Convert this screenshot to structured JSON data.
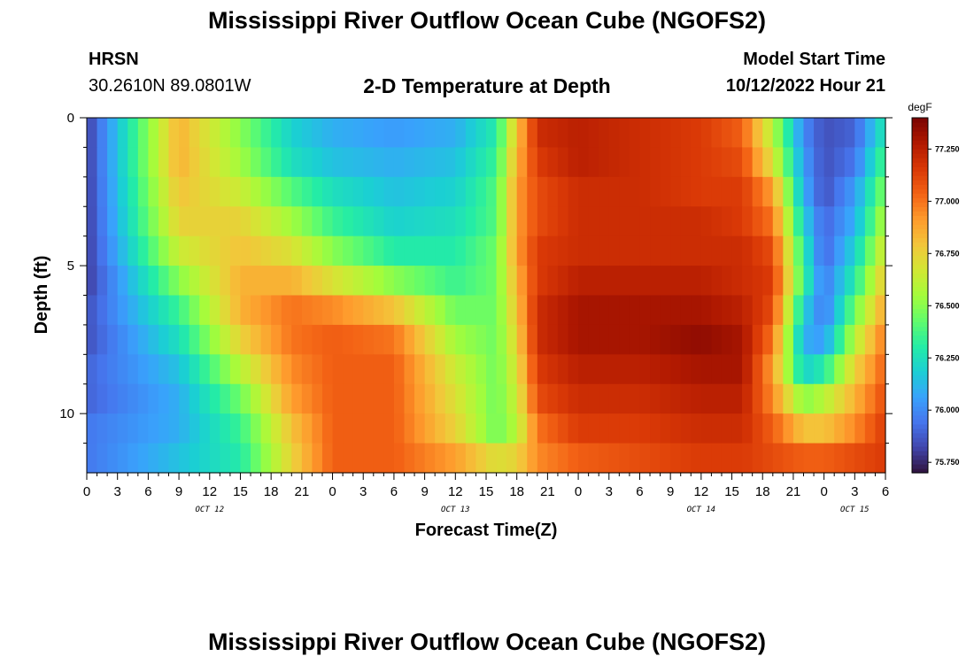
{
  "header": {
    "title": "Mississippi River Outflow Ocean Cube (NGOFS2)",
    "station": "HRSN",
    "coords": "30.2610N  89.0801W",
    "subtitle": "2-D Temperature at Depth",
    "model_start_label": "Model Start Time",
    "model_start_value": "10/12/2022 Hour 21"
  },
  "footer": {
    "title": "Mississippi River Outflow Ocean Cube (NGOFS2)"
  },
  "chart_data": {
    "type": "heatmap",
    "title": "2-D Temperature at Depth",
    "xlabel": "Forecast Time(Z)",
    "ylabel": "Depth (ft)",
    "x_hours_range": [
      0,
      78
    ],
    "y_depth_range_ft": [
      0,
      12
    ],
    "x_tick_labels": [
      "0",
      "3",
      "6",
      "9",
      "12",
      "15",
      "18",
      "21",
      "0",
      "3",
      "6",
      "9",
      "12",
      "15",
      "18",
      "21",
      "0",
      "3",
      "6",
      "9",
      "12",
      "15",
      "18",
      "21",
      "0",
      "3",
      "6"
    ],
    "date_labels": [
      {
        "label": "OCT 12",
        "hour": 12
      },
      {
        "label": "OCT 13",
        "hour": 36
      },
      {
        "label": "OCT 14",
        "hour": 60
      },
      {
        "label": "OCT 15",
        "hour": 75
      }
    ],
    "y_major_ticks": [
      0,
      5,
      10
    ],
    "y_minor_ticks": [
      1,
      2,
      3,
      4,
      6,
      7,
      8,
      9,
      11
    ],
    "colorbar": {
      "unit": "degF",
      "min": 75.7,
      "max": 77.4,
      "tick_values": [
        75.75,
        76.0,
        76.25,
        76.5,
        76.75,
        77.0,
        77.25
      ],
      "tick_labels": [
        "75.750",
        "76.000",
        "76.250",
        "76.500",
        "76.750",
        "77.000",
        "77.250"
      ],
      "colormap": [
        "#30123b",
        "#4145ab",
        "#4675ed",
        "#39a2fc",
        "#1bcfd4",
        "#24eca6",
        "#61fc6c",
        "#a4fc3b",
        "#d1e834",
        "#f3c63a",
        "#fe9b2d",
        "#f36315",
        "#d93806",
        "#b11901",
        "#7a0402"
      ]
    },
    "depth_levels_ft": [
      0.5,
      1.5,
      2.5,
      3.5,
      4.5,
      5.5,
      6.5,
      7.5,
      8.5,
      9.5,
      10.5,
      11.5
    ],
    "time_hours": [
      0,
      9,
      15,
      20,
      24,
      30,
      36,
      40,
      42,
      44,
      48,
      54,
      60,
      64,
      67,
      70,
      72,
      75,
      78
    ],
    "temperature_degF": [
      [
        75.8,
        76.85,
        76.5,
        76.2,
        76.1,
        76.05,
        76.1,
        76.3,
        76.8,
        77.2,
        77.25,
        77.2,
        77.15,
        77.05,
        76.6,
        76.0,
        75.85,
        75.9,
        76.3
      ],
      [
        75.8,
        76.85,
        76.55,
        76.25,
        76.15,
        76.1,
        76.15,
        76.35,
        76.85,
        77.15,
        77.25,
        77.2,
        77.15,
        77.1,
        76.7,
        76.05,
        75.85,
        75.95,
        76.4
      ],
      [
        75.8,
        76.8,
        76.65,
        76.4,
        76.25,
        76.15,
        76.2,
        76.4,
        76.9,
        77.1,
        77.2,
        77.2,
        77.15,
        77.15,
        76.9,
        76.1,
        75.85,
        76.05,
        76.5
      ],
      [
        75.8,
        76.75,
        76.75,
        76.55,
        76.35,
        76.2,
        76.25,
        76.4,
        76.9,
        77.1,
        77.2,
        77.2,
        77.2,
        77.15,
        77.0,
        76.2,
        75.9,
        76.1,
        76.6
      ],
      [
        75.8,
        76.65,
        76.8,
        76.7,
        76.5,
        76.3,
        76.3,
        76.45,
        76.9,
        77.15,
        77.2,
        77.2,
        77.2,
        77.2,
        77.1,
        76.3,
        75.9,
        76.2,
        76.7
      ],
      [
        75.8,
        76.5,
        76.85,
        76.85,
        76.7,
        76.5,
        76.35,
        76.45,
        76.85,
        77.15,
        77.25,
        77.25,
        77.25,
        77.2,
        77.15,
        76.35,
        75.95,
        76.3,
        76.8
      ],
      [
        75.85,
        76.35,
        76.85,
        77.0,
        76.95,
        76.8,
        76.45,
        76.45,
        76.8,
        77.2,
        77.3,
        77.3,
        77.3,
        77.25,
        77.1,
        76.2,
        75.95,
        76.45,
        76.9
      ],
      [
        75.85,
        76.25,
        76.75,
        77.0,
        77.05,
        77.0,
        76.55,
        76.45,
        76.75,
        77.2,
        77.3,
        77.3,
        77.35,
        77.3,
        77.0,
        76.1,
        76.05,
        76.6,
        77.0
      ],
      [
        75.9,
        76.15,
        76.6,
        76.95,
        77.05,
        77.05,
        76.65,
        76.45,
        76.7,
        77.15,
        77.25,
        77.25,
        77.3,
        77.3,
        76.9,
        76.2,
        76.3,
        76.75,
        77.05
      ],
      [
        75.9,
        76.1,
        76.45,
        76.9,
        77.05,
        77.05,
        76.7,
        76.45,
        76.65,
        77.1,
        77.2,
        77.2,
        77.25,
        77.25,
        76.95,
        76.5,
        76.6,
        76.85,
        77.1
      ],
      [
        75.95,
        76.1,
        76.35,
        76.8,
        77.05,
        77.05,
        76.75,
        76.45,
        76.6,
        77.0,
        77.15,
        77.15,
        77.2,
        77.2,
        77.05,
        76.8,
        76.8,
        76.95,
        77.15
      ],
      [
        75.95,
        76.15,
        76.3,
        76.75,
        77.05,
        77.05,
        76.9,
        76.7,
        76.75,
        76.95,
        77.05,
        77.1,
        77.15,
        77.15,
        77.1,
        77.05,
        77.05,
        77.1,
        77.15
      ]
    ]
  }
}
